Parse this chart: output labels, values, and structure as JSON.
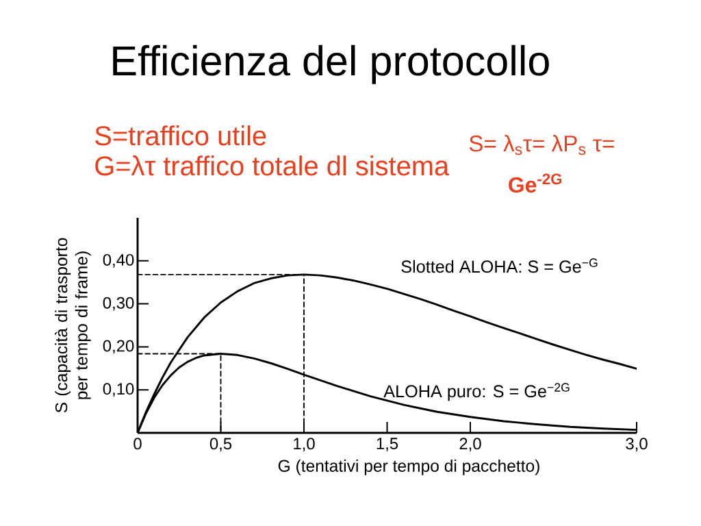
{
  "chart_data": {
    "type": "line",
    "title": "Efficienza del protocollo",
    "xlabel": "G (tentativi per tempo di pacchetto)",
    "ylabel": "S (capacità di trasporto per tempo di frame)",
    "xlim": [
      0,
      3.0
    ],
    "ylim": [
      0,
      0.5
    ],
    "xticks": [
      0,
      {
        "value": 0.5,
        "label": "0,5"
      },
      {
        "value": 1.0,
        "label": "1,0"
      },
      {
        "value": 1.5,
        "label": "1,5"
      },
      {
        "value": 2.0,
        "label": "2,0"
      },
      {
        "value": 3.0,
        "label": "3,0"
      }
    ],
    "yticks": [
      {
        "value": 0.1,
        "label": "0,10"
      },
      {
        "value": 0.2,
        "label": "0,20"
      },
      {
        "value": 0.3,
        "label": "0,30"
      },
      {
        "value": 0.4,
        "label": "0,40"
      }
    ],
    "series": [
      {
        "name": "Slotted ALOHA: S = Ge$^{−G}$",
        "color": "#000000",
        "x": [
          0,
          0.05,
          0.1,
          0.15,
          0.2,
          0.3,
          0.4,
          0.5,
          0.6,
          0.7,
          0.8,
          0.9,
          1.0,
          1.1,
          1.2,
          1.3,
          1.4,
          1.5,
          1.6,
          1.7,
          1.8,
          1.9,
          2.0,
          2.1,
          2.2,
          2.3,
          2.4,
          2.5,
          2.6,
          2.7,
          2.8,
          2.9,
          3.0
        ],
        "values": [
          0,
          0.048,
          0.09,
          0.129,
          0.164,
          0.222,
          0.268,
          0.303,
          0.329,
          0.348,
          0.359,
          0.366,
          0.368,
          0.366,
          0.361,
          0.354,
          0.345,
          0.335,
          0.323,
          0.311,
          0.298,
          0.284,
          0.271,
          0.257,
          0.244,
          0.231,
          0.218,
          0.205,
          0.193,
          0.181,
          0.17,
          0.16,
          0.149
        ]
      },
      {
        "name": "ALOHA puro: S = Ge$^{−2G}$",
        "color": "#000000",
        "x": [
          0,
          0.05,
          0.1,
          0.15,
          0.2,
          0.25,
          0.3,
          0.35,
          0.4,
          0.5,
          0.6,
          0.7,
          0.8,
          0.9,
          1.0,
          1.1,
          1.2,
          1.3,
          1.4,
          1.5,
          1.6,
          1.7,
          1.8,
          1.9,
          2.0,
          2.2,
          2.4,
          2.6,
          2.8,
          3.0
        ],
        "values": [
          0,
          0.045,
          0.082,
          0.111,
          0.134,
          0.152,
          0.165,
          0.174,
          0.18,
          0.184,
          0.181,
          0.173,
          0.162,
          0.149,
          0.135,
          0.122,
          0.109,
          0.097,
          0.085,
          0.075,
          0.065,
          0.057,
          0.049,
          0.043,
          0.037,
          0.027,
          0.02,
          0.014,
          0.01,
          0.007
        ]
      },
      {
        "color": "#000000",
        "line_style": "dashed",
        "x": [
          0,
          1.0,
          1.0
        ],
        "values": [
          0.368,
          0.368,
          0
        ]
      },
      {
        "color": "#000000",
        "line_style": "dashed",
        "x": [
          0,
          0.5,
          0.5
        ],
        "values": [
          0.184,
          0.184,
          0
        ]
      }
    ],
    "annotations": [
      "S=traffico utile",
      "G=λτ traffico totale dl sistema",
      "S= λ$_{s}$τ= λP$_{s}$ τ=",
      "Ge$^{-2G}$"
    ]
  }
}
